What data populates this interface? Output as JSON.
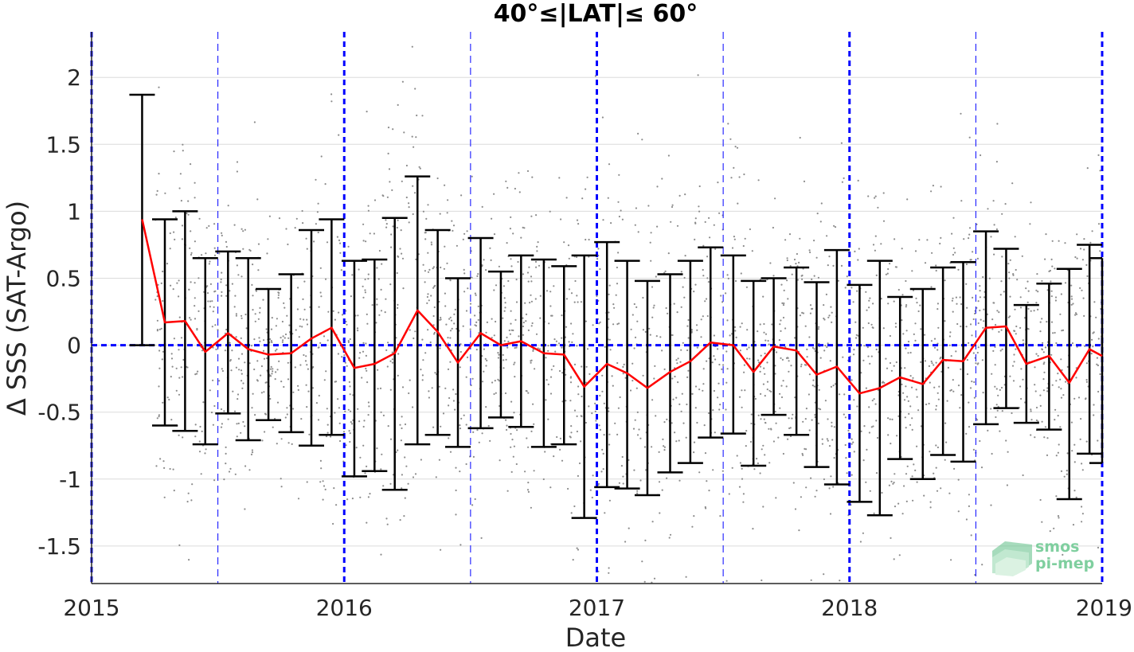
{
  "chart_data": {
    "type": "line",
    "title": "40°≤|LAT|≤ 60°",
    "xlabel": "Date",
    "ylabel": "Δ SSS (SAT-Argo)",
    "xlim": [
      2015,
      2019
    ],
    "ylim": [
      -1.78,
      2.34
    ],
    "x_ticks": [
      "2015",
      "2016",
      "2017",
      "2018",
      "2019"
    ],
    "y_ticks": [
      2,
      1.5,
      1,
      0.5,
      0,
      -0.5,
      -1,
      -1.5
    ],
    "y_tick_labels": [
      "2",
      "1.5",
      "1",
      "0.5",
      "0",
      "-0.5",
      "-1",
      "-1.5"
    ],
    "grid": true,
    "zero_line": 0,
    "year_lines": [
      2015,
      2016,
      2017,
      2018,
      2019
    ],
    "half_year_lines": [
      2015.5,
      2016.5,
      2017.5,
      2018.5
    ],
    "colors": {
      "mean_line": "#ff0000",
      "error_bars": "#000000",
      "reference_lines": "#0000ff",
      "scatter": "#8c8c8c",
      "grid": "#dcdcdc"
    },
    "series": [
      {
        "x": [
          2015.2,
          2015.29,
          2015.37,
          2015.45,
          2015.54,
          2015.62,
          2015.7,
          2015.79,
          2015.87,
          2015.95,
          2016.04,
          2016.12,
          2016.2,
          2016.29,
          2016.37,
          2016.45,
          2016.54,
          2016.62,
          2016.7,
          2016.79,
          2016.87,
          2016.95,
          2017.04,
          2017.12,
          2017.2,
          2017.29,
          2017.37,
          2017.45,
          2017.54,
          2017.62,
          2017.7,
          2017.79,
          2017.87,
          2017.95,
          2018.04,
          2018.12,
          2018.2,
          2018.29,
          2018.37,
          2018.45,
          2018.54,
          2018.62,
          2018.7,
          2018.79,
          2018.87,
          2018.95,
          2019.0
        ],
        "mean": [
          0.94,
          0.17,
          0.18,
          -0.05,
          0.09,
          -0.03,
          -0.07,
          -0.06,
          0.05,
          0.13,
          -0.17,
          -0.14,
          -0.06,
          0.26,
          0.1,
          -0.13,
          0.09,
          0.0,
          0.03,
          -0.06,
          -0.07,
          -0.31,
          -0.14,
          -0.21,
          -0.32,
          -0.2,
          -0.12,
          0.02,
          0.0,
          -0.2,
          -0.01,
          -0.04,
          -0.22,
          -0.16,
          -0.36,
          -0.32,
          -0.24,
          -0.29,
          -0.11,
          -0.12,
          0.13,
          0.14,
          -0.14,
          -0.08,
          -0.28,
          -0.03,
          -0.08
        ],
        "upper": [
          1.87,
          0.94,
          1.0,
          0.65,
          0.7,
          0.65,
          0.42,
          0.53,
          0.86,
          0.94,
          0.63,
          0.64,
          0.95,
          1.26,
          0.86,
          0.5,
          0.8,
          0.55,
          0.67,
          0.64,
          0.59,
          0.67,
          0.77,
          0.63,
          0.48,
          0.53,
          0.63,
          0.73,
          0.67,
          0.48,
          0.5,
          0.58,
          0.47,
          0.71,
          0.45,
          0.63,
          0.36,
          0.42,
          0.58,
          0.62,
          0.85,
          0.72,
          0.3,
          0.46,
          0.57,
          0.75,
          0.65
        ],
        "lower": [
          0.0,
          -0.6,
          -0.64,
          -0.74,
          -0.51,
          -0.71,
          -0.56,
          -0.65,
          -0.75,
          -0.67,
          -0.98,
          -0.94,
          -1.08,
          -0.74,
          -0.67,
          -0.76,
          -0.62,
          -0.54,
          -0.61,
          -0.76,
          -0.74,
          -1.29,
          -1.06,
          -1.07,
          -1.12,
          -0.95,
          -0.88,
          -0.69,
          -0.66,
          -0.9,
          -0.52,
          -0.67,
          -0.91,
          -1.04,
          -1.17,
          -1.27,
          -0.85,
          -1.0,
          -0.82,
          -0.87,
          -0.59,
          -0.47,
          -0.58,
          -0.63,
          -1.15,
          -0.81,
          -0.88
        ]
      }
    ],
    "scatter_points": 2600
  },
  "logo": {
    "line1": "smos",
    "line2": "pi-mep"
  }
}
